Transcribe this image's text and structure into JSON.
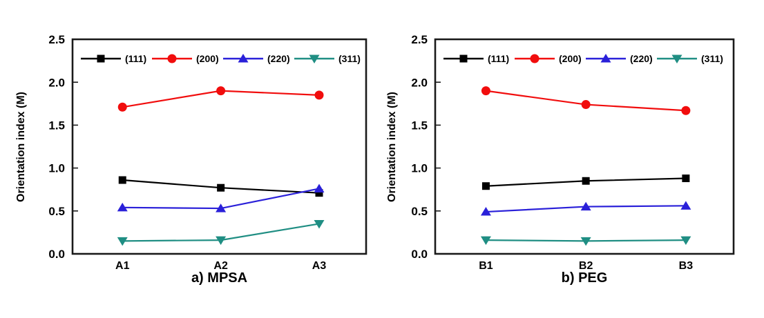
{
  "figure": {
    "background": "#ffffff",
    "frame_color": "#1a1a1a",
    "y_axis_label": "Orientation index (M)"
  },
  "chart_data": [
    {
      "type": "line",
      "title": "a) MPSA",
      "ylabel": "Orientation index (M)",
      "xlabel": "",
      "categories": [
        "A1",
        "A2",
        "A3"
      ],
      "ylim": [
        0.0,
        2.5
      ],
      "yticks": [
        0.0,
        0.5,
        1.0,
        1.5,
        2.0,
        2.5
      ],
      "grid": false,
      "legend_position": "top-inside-horizontal",
      "series": [
        {
          "name": "(111)",
          "color": "#000000",
          "marker": "square",
          "values": [
            0.86,
            0.77,
            0.71
          ]
        },
        {
          "name": "(200)",
          "color": "#f10d0d",
          "marker": "circle",
          "values": [
            1.71,
            1.9,
            1.85
          ]
        },
        {
          "name": "(220)",
          "color": "#2a20d9",
          "marker": "triangle-up",
          "values": [
            0.54,
            0.53,
            0.76
          ]
        },
        {
          "name": "(311)",
          "color": "#1f8e83",
          "marker": "triangle-down",
          "values": [
            0.15,
            0.16,
            0.35
          ]
        }
      ]
    },
    {
      "type": "line",
      "title": "b) PEG",
      "ylabel": "Orientation index (M)",
      "xlabel": "",
      "categories": [
        "B1",
        "B2",
        "B3"
      ],
      "ylim": [
        0.0,
        2.5
      ],
      "yticks": [
        0.0,
        0.5,
        1.0,
        1.5,
        2.0,
        2.5
      ],
      "grid": false,
      "legend_position": "top-inside-horizontal",
      "series": [
        {
          "name": "(111)",
          "color": "#000000",
          "marker": "square",
          "values": [
            0.79,
            0.85,
            0.88
          ]
        },
        {
          "name": "(200)",
          "color": "#f10d0d",
          "marker": "circle",
          "values": [
            1.9,
            1.74,
            1.67
          ]
        },
        {
          "name": "(220)",
          "color": "#2a20d9",
          "marker": "triangle-up",
          "values": [
            0.49,
            0.55,
            0.56
          ]
        },
        {
          "name": "(311)",
          "color": "#1f8e83",
          "marker": "triangle-down",
          "values": [
            0.16,
            0.15,
            0.16
          ]
        }
      ]
    }
  ]
}
